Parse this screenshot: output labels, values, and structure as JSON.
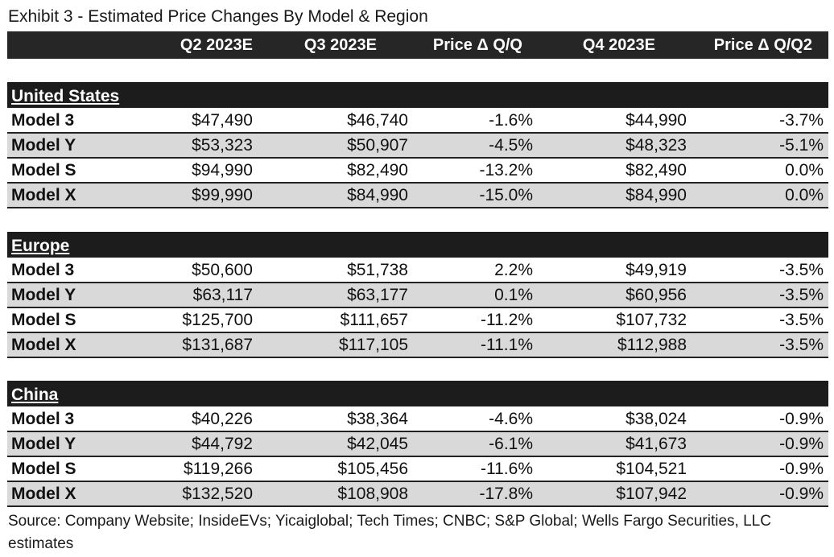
{
  "title": "Exhibit 3 - Estimated Price Changes By Model & Region",
  "columns": [
    "Q2 2023E",
    "Q3 2023E",
    "Price Δ Q/Q",
    "Q4 2023E",
    "Price Δ Q/Q2"
  ],
  "sections": [
    {
      "name": "United States",
      "rows": [
        {
          "model": "Model 3",
          "q2": "$47,490",
          "q3": "$46,740",
          "dqq": "-1.6%",
          "q4": "$44,990",
          "dqq2": "-3.7%"
        },
        {
          "model": "Model Y",
          "q2": "$53,323",
          "q3": "$50,907",
          "dqq": "-4.5%",
          "q4": "$48,323",
          "dqq2": "-5.1%"
        },
        {
          "model": "Model S",
          "q2": "$94,990",
          "q3": "$82,490",
          "dqq": "-13.2%",
          "q4": "$82,490",
          "dqq2": "0.0%"
        },
        {
          "model": "Model X",
          "q2": "$99,990",
          "q3": "$84,990",
          "dqq": "-15.0%",
          "q4": "$84,990",
          "dqq2": "0.0%"
        }
      ]
    },
    {
      "name": "Europe",
      "rows": [
        {
          "model": "Model 3",
          "q2": "$50,600",
          "q3": "$51,738",
          "dqq": "2.2%",
          "q4": "$49,919",
          "dqq2": "-3.5%"
        },
        {
          "model": "Model Y",
          "q2": "$63,117",
          "q3": "$63,177",
          "dqq": "0.1%",
          "q4": "$60,956",
          "dqq2": "-3.5%"
        },
        {
          "model": "Model S",
          "q2": "$125,700",
          "q3": "$111,657",
          "dqq": "-11.2%",
          "q4": "$107,732",
          "dqq2": "-3.5%"
        },
        {
          "model": "Model X",
          "q2": "$131,687",
          "q3": "$117,105",
          "dqq": "-11.1%",
          "q4": "$112,988",
          "dqq2": "-3.5%"
        }
      ]
    },
    {
      "name": "China",
      "rows": [
        {
          "model": "Model 3",
          "q2": "$40,226",
          "q3": "$38,364",
          "dqq": "-4.6%",
          "q4": "$38,024",
          "dqq2": "-0.9%"
        },
        {
          "model": "Model Y",
          "q2": "$44,792",
          "q3": "$42,045",
          "dqq": "-6.1%",
          "q4": "$41,673",
          "dqq2": "-0.9%"
        },
        {
          "model": "Model S",
          "q2": "$119,266",
          "q3": "$105,456",
          "dqq": "-11.6%",
          "q4": "$104,521",
          "dqq2": "-0.9%"
        },
        {
          "model": "Model X",
          "q2": "$132,520",
          "q3": "$108,908",
          "dqq": "-17.8%",
          "q4": "$107,942",
          "dqq2": "-0.9%"
        }
      ]
    }
  ],
  "source": "Source: Company Website; InsideEVs; Yicaiglobal; Tech Times; CNBC; S&P Global; Wells Fargo Securities, LLC estimates"
}
